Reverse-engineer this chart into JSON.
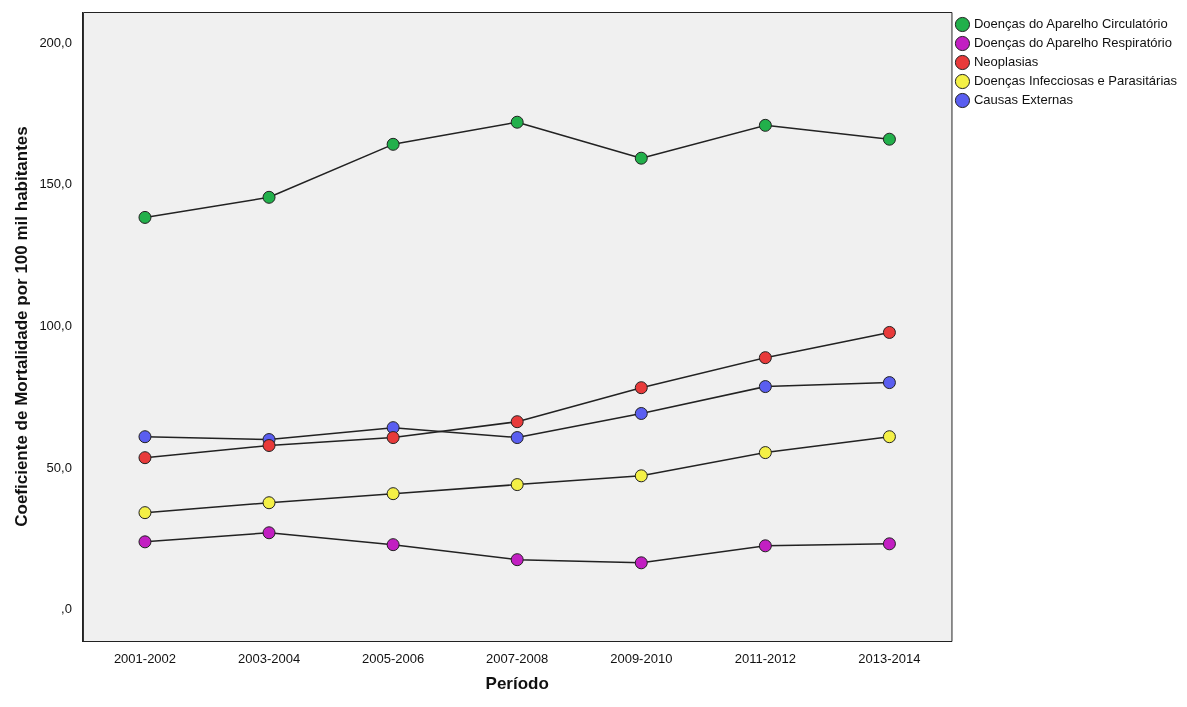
{
  "chart_data": {
    "type": "line",
    "xlabel": "Período",
    "ylabel": "Coeficiente de Mortalidade por 100 mil habitantes",
    "categories": [
      "2001-2002",
      "2003-2004",
      "2005-2006",
      "2007-2008",
      "2009-2010",
      "2011-2012",
      "2013-2014"
    ],
    "series": [
      {
        "name": "Doenças do Aparelho Circulatório",
        "color": "#22b04b",
        "values": [
          138.5,
          145.6,
          164.3,
          172.1,
          159.4,
          171.0,
          166.1
        ]
      },
      {
        "name": "Doenças do Aparelho Respiratório",
        "color": "#c21fc2",
        "values": [
          24.0,
          27.2,
          23.0,
          17.7,
          16.6,
          22.6,
          23.3
        ]
      },
      {
        "name": "Neoplasias",
        "color": "#e83a3a",
        "values": [
          53.7,
          58.0,
          60.8,
          66.4,
          78.4,
          89.0,
          97.9
        ]
      },
      {
        "name": "Doenças Infecciosas e Parasitárias",
        "color": "#f4f046",
        "values": [
          34.3,
          37.8,
          41.0,
          44.2,
          47.3,
          55.5,
          61.1
        ]
      },
      {
        "name": "Causas Externas",
        "color": "#5a5ef0",
        "values": [
          61.1,
          60.1,
          64.3,
          60.8,
          69.3,
          78.8,
          80.2
        ]
      }
    ],
    "ylim": [
      -11,
      211
    ],
    "yticks": [
      {
        "value": 0,
        "label": ",0"
      },
      {
        "value": 50,
        "label": "50,0"
      },
      {
        "value": 100,
        "label": "100,0"
      },
      {
        "value": 150,
        "label": "150,0"
      },
      {
        "value": 200,
        "label": "200,0"
      }
    ],
    "grid": false,
    "legend": "top right",
    "marker": "circle",
    "line_style": "solid"
  }
}
